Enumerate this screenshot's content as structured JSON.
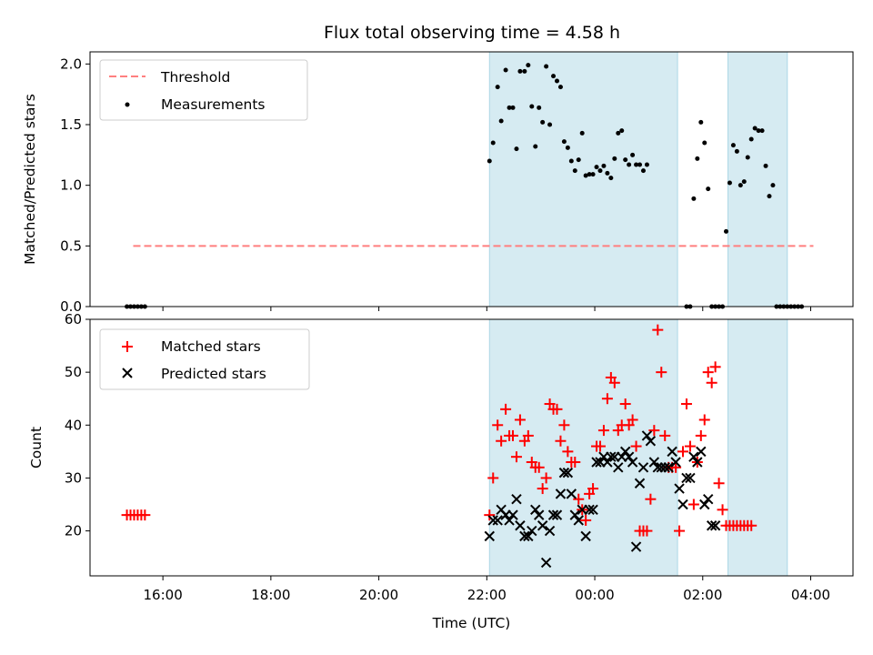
{
  "chart_data": [
    {
      "panel": "top",
      "type": "scatter",
      "title": "Flux total observing time = 4.58 h",
      "xlabel": "",
      "ylabel": "Matched/Predicted stars",
      "ylim": [
        0,
        2.1
      ],
      "yticks": [
        "0.0",
        "0.5",
        "1.0",
        "1.5",
        "2.0"
      ],
      "legend": {
        "placement": "top-left",
        "entries": [
          "Threshold",
          "Measurements"
        ]
      },
      "threshold": {
        "name": "Threshold",
        "value": 0.5,
        "x_start": "15:27",
        "x_end": "04:03",
        "color": "#ff7f7f"
      },
      "series": [
        {
          "name": "Measurements",
          "color": "#000000",
          "points": [
            [
              "15:20",
              0
            ],
            [
              "15:24",
              0
            ],
            [
              "15:28",
              0
            ],
            [
              "15:32",
              0
            ],
            [
              "15:36",
              0
            ],
            [
              "15:40",
              0
            ],
            [
              "22:03",
              1.2
            ],
            [
              "22:07",
              1.35
            ],
            [
              "22:12",
              1.81
            ],
            [
              "22:16",
              1.53
            ],
            [
              "22:21",
              1.95
            ],
            [
              "22:25",
              1.64
            ],
            [
              "22:29",
              1.64
            ],
            [
              "22:33",
              1.3
            ],
            [
              "22:37",
              1.94
            ],
            [
              "22:42",
              1.94
            ],
            [
              "22:46",
              1.99
            ],
            [
              "22:50",
              1.65
            ],
            [
              "22:54",
              1.32
            ],
            [
              "22:58",
              1.64
            ],
            [
              "23:02",
              1.52
            ],
            [
              "23:06",
              1.98
            ],
            [
              "23:10",
              1.5
            ],
            [
              "23:14",
              1.9
            ],
            [
              "23:18",
              1.86
            ],
            [
              "23:22",
              1.81
            ],
            [
              "23:26",
              1.36
            ],
            [
              "23:30",
              1.31
            ],
            [
              "23:34",
              1.2
            ],
            [
              "23:38",
              1.12
            ],
            [
              "23:42",
              1.21
            ],
            [
              "23:46",
              1.43
            ],
            [
              "23:50",
              1.08
            ],
            [
              "23:54",
              1.09
            ],
            [
              "23:58",
              1.09
            ],
            [
              "00:02",
              1.15
            ],
            [
              "00:06",
              1.12
            ],
            [
              "00:10",
              1.16
            ],
            [
              "00:14",
              1.1
            ],
            [
              "00:18",
              1.06
            ],
            [
              "00:22",
              1.22
            ],
            [
              "00:26",
              1.43
            ],
            [
              "00:30",
              1.45
            ],
            [
              "00:34",
              1.21
            ],
            [
              "00:38",
              1.17
            ],
            [
              "00:42",
              1.25
            ],
            [
              "00:46",
              1.17
            ],
            [
              "00:50",
              1.17
            ],
            [
              "00:54",
              1.12
            ],
            [
              "00:58",
              1.17
            ],
            [
              "01:42",
              0
            ],
            [
              "01:46",
              0
            ],
            [
              "01:50",
              0.89
            ],
            [
              "01:54",
              1.22
            ],
            [
              "01:58",
              1.52
            ],
            [
              "02:02",
              1.35
            ],
            [
              "02:06",
              0.97
            ],
            [
              "02:10",
              0
            ],
            [
              "02:14",
              0
            ],
            [
              "02:18",
              0
            ],
            [
              "02:22",
              0
            ],
            [
              "02:26",
              0.62
            ],
            [
              "02:30",
              1.02
            ],
            [
              "02:34",
              1.33
            ],
            [
              "02:38",
              1.28
            ],
            [
              "02:42",
              1.0
            ],
            [
              "02:46",
              1.03
            ],
            [
              "02:50",
              1.23
            ],
            [
              "02:54",
              1.38
            ],
            [
              "02:58",
              1.47
            ],
            [
              "03:02",
              1.45
            ],
            [
              "03:06",
              1.45
            ],
            [
              "03:10",
              1.16
            ],
            [
              "03:14",
              0.91
            ],
            [
              "03:18",
              1.0
            ],
            [
              "03:22",
              0
            ],
            [
              "03:26",
              0
            ],
            [
              "03:30",
              0
            ],
            [
              "03:34",
              0
            ],
            [
              "03:38",
              0
            ],
            [
              "03:42",
              0
            ],
            [
              "03:46",
              0
            ],
            [
              "03:50",
              0
            ]
          ]
        }
      ],
      "shaded_intervals": [
        [
          "22:03",
          "01:32"
        ],
        [
          "02:28",
          "03:34"
        ]
      ]
    },
    {
      "panel": "bottom",
      "type": "scatter",
      "title": "",
      "xlabel": "Time (UTC)",
      "ylabel": "Count",
      "ylim": [
        11.5,
        60
      ],
      "yticks": [
        "20",
        "30",
        "40",
        "50",
        "60"
      ],
      "xticks": [
        "16:00",
        "18:00",
        "20:00",
        "22:00",
        "00:00",
        "02:00",
        "04:00"
      ],
      "legend": {
        "placement": "top-left",
        "entries": [
          "Matched stars",
          "Predicted stars"
        ]
      },
      "series": [
        {
          "name": "Matched stars",
          "marker": "plus",
          "color": "#ff0000",
          "points": [
            [
              "15:20",
              23
            ],
            [
              "15:24",
              23
            ],
            [
              "15:28",
              23
            ],
            [
              "15:32",
              23
            ],
            [
              "15:36",
              23
            ],
            [
              "15:40",
              23
            ],
            [
              "22:03",
              23
            ],
            [
              "22:07",
              30
            ],
            [
              "22:12",
              40
            ],
            [
              "22:16",
              37
            ],
            [
              "22:21",
              43
            ],
            [
              "22:25",
              38
            ],
            [
              "22:29",
              38
            ],
            [
              "22:33",
              34
            ],
            [
              "22:37",
              41
            ],
            [
              "22:42",
              37
            ],
            [
              "22:46",
              38
            ],
            [
              "22:50",
              33
            ],
            [
              "22:54",
              32
            ],
            [
              "22:58",
              32
            ],
            [
              "23:02",
              28
            ],
            [
              "23:06",
              30
            ],
            [
              "23:10",
              44
            ],
            [
              "23:14",
              43
            ],
            [
              "23:18",
              43
            ],
            [
              "23:22",
              37
            ],
            [
              "23:26",
              40
            ],
            [
              "23:30",
              35
            ],
            [
              "23:34",
              33
            ],
            [
              "23:38",
              33
            ],
            [
              "23:42",
              26
            ],
            [
              "23:46",
              24
            ],
            [
              "23:50",
              22
            ],
            [
              "23:54",
              27
            ],
            [
              "23:58",
              28
            ],
            [
              "00:02",
              36
            ],
            [
              "00:06",
              36
            ],
            [
              "00:10",
              39
            ],
            [
              "00:14",
              45
            ],
            [
              "00:18",
              49
            ],
            [
              "00:22",
              48
            ],
            [
              "00:26",
              39
            ],
            [
              "00:30",
              40
            ],
            [
              "00:34",
              44
            ],
            [
              "00:38",
              40
            ],
            [
              "00:42",
              41
            ],
            [
              "00:46",
              36
            ],
            [
              "00:50",
              20
            ],
            [
              "00:54",
              20
            ],
            [
              "00:58",
              20
            ],
            [
              "01:02",
              26
            ],
            [
              "01:06",
              39
            ],
            [
              "01:10",
              58
            ],
            [
              "01:14",
              50
            ],
            [
              "01:18",
              38
            ],
            [
              "01:22",
              32
            ],
            [
              "01:26",
              32
            ],
            [
              "01:30",
              32
            ],
            [
              "01:34",
              20
            ],
            [
              "01:38",
              35
            ],
            [
              "01:42",
              44
            ],
            [
              "01:46",
              36
            ],
            [
              "01:50",
              25
            ],
            [
              "01:54",
              33
            ],
            [
              "01:58",
              38
            ],
            [
              "02:02",
              41
            ],
            [
              "02:06",
              50
            ],
            [
              "02:10",
              48
            ],
            [
              "02:14",
              51
            ],
            [
              "02:18",
              29
            ],
            [
              "02:22",
              24
            ],
            [
              "02:26",
              21
            ],
            [
              "02:30",
              21
            ],
            [
              "02:34",
              21
            ],
            [
              "02:38",
              21
            ],
            [
              "02:42",
              21
            ],
            [
              "02:46",
              21
            ],
            [
              "02:50",
              21
            ],
            [
              "02:54",
              21
            ]
          ]
        },
        {
          "name": "Predicted stars",
          "marker": "x",
          "color": "#000000",
          "points": [
            [
              "22:03",
              19
            ],
            [
              "22:07",
              22
            ],
            [
              "22:12",
              22
            ],
            [
              "22:16",
              24
            ],
            [
              "22:21",
              23
            ],
            [
              "22:25",
              22
            ],
            [
              "22:29",
              23
            ],
            [
              "22:33",
              26
            ],
            [
              "22:37",
              21
            ],
            [
              "22:42",
              19
            ],
            [
              "22:46",
              19
            ],
            [
              "22:50",
              20
            ],
            [
              "22:54",
              24
            ],
            [
              "22:58",
              23
            ],
            [
              "23:02",
              21
            ],
            [
              "23:06",
              14
            ],
            [
              "23:10",
              20
            ],
            [
              "23:14",
              23
            ],
            [
              "23:18",
              23
            ],
            [
              "23:22",
              27
            ],
            [
              "23:26",
              31
            ],
            [
              "23:30",
              31
            ],
            [
              "23:34",
              27
            ],
            [
              "23:38",
              23
            ],
            [
              "23:42",
              22
            ],
            [
              "23:46",
              24
            ],
            [
              "23:50",
              19
            ],
            [
              "23:54",
              24
            ],
            [
              "23:58",
              24
            ],
            [
              "00:02",
              33
            ],
            [
              "00:06",
              33
            ],
            [
              "00:10",
              34
            ],
            [
              "00:14",
              33
            ],
            [
              "00:18",
              34
            ],
            [
              "00:22",
              34
            ],
            [
              "00:26",
              32
            ],
            [
              "00:30",
              34
            ],
            [
              "00:34",
              35
            ],
            [
              "00:38",
              34
            ],
            [
              "00:42",
              33
            ],
            [
              "00:46",
              17
            ],
            [
              "00:50",
              29
            ],
            [
              "00:54",
              32
            ],
            [
              "00:58",
              38
            ],
            [
              "01:02",
              37
            ],
            [
              "01:06",
              33
            ],
            [
              "01:10",
              32
            ],
            [
              "01:14",
              32
            ],
            [
              "01:18",
              32
            ],
            [
              "01:22",
              32
            ],
            [
              "01:26",
              35
            ],
            [
              "01:30",
              33
            ],
            [
              "01:34",
              28
            ],
            [
              "01:38",
              25
            ],
            [
              "01:42",
              30
            ],
            [
              "01:46",
              30
            ],
            [
              "01:50",
              34
            ],
            [
              "01:54",
              33
            ],
            [
              "01:58",
              35
            ],
            [
              "02:02",
              25
            ],
            [
              "02:06",
              26
            ],
            [
              "02:10",
              21
            ],
            [
              "02:14",
              21
            ]
          ]
        }
      ],
      "shaded_intervals": [
        [
          "22:03",
          "01:32"
        ],
        [
          "02:28",
          "03:34"
        ]
      ]
    }
  ]
}
